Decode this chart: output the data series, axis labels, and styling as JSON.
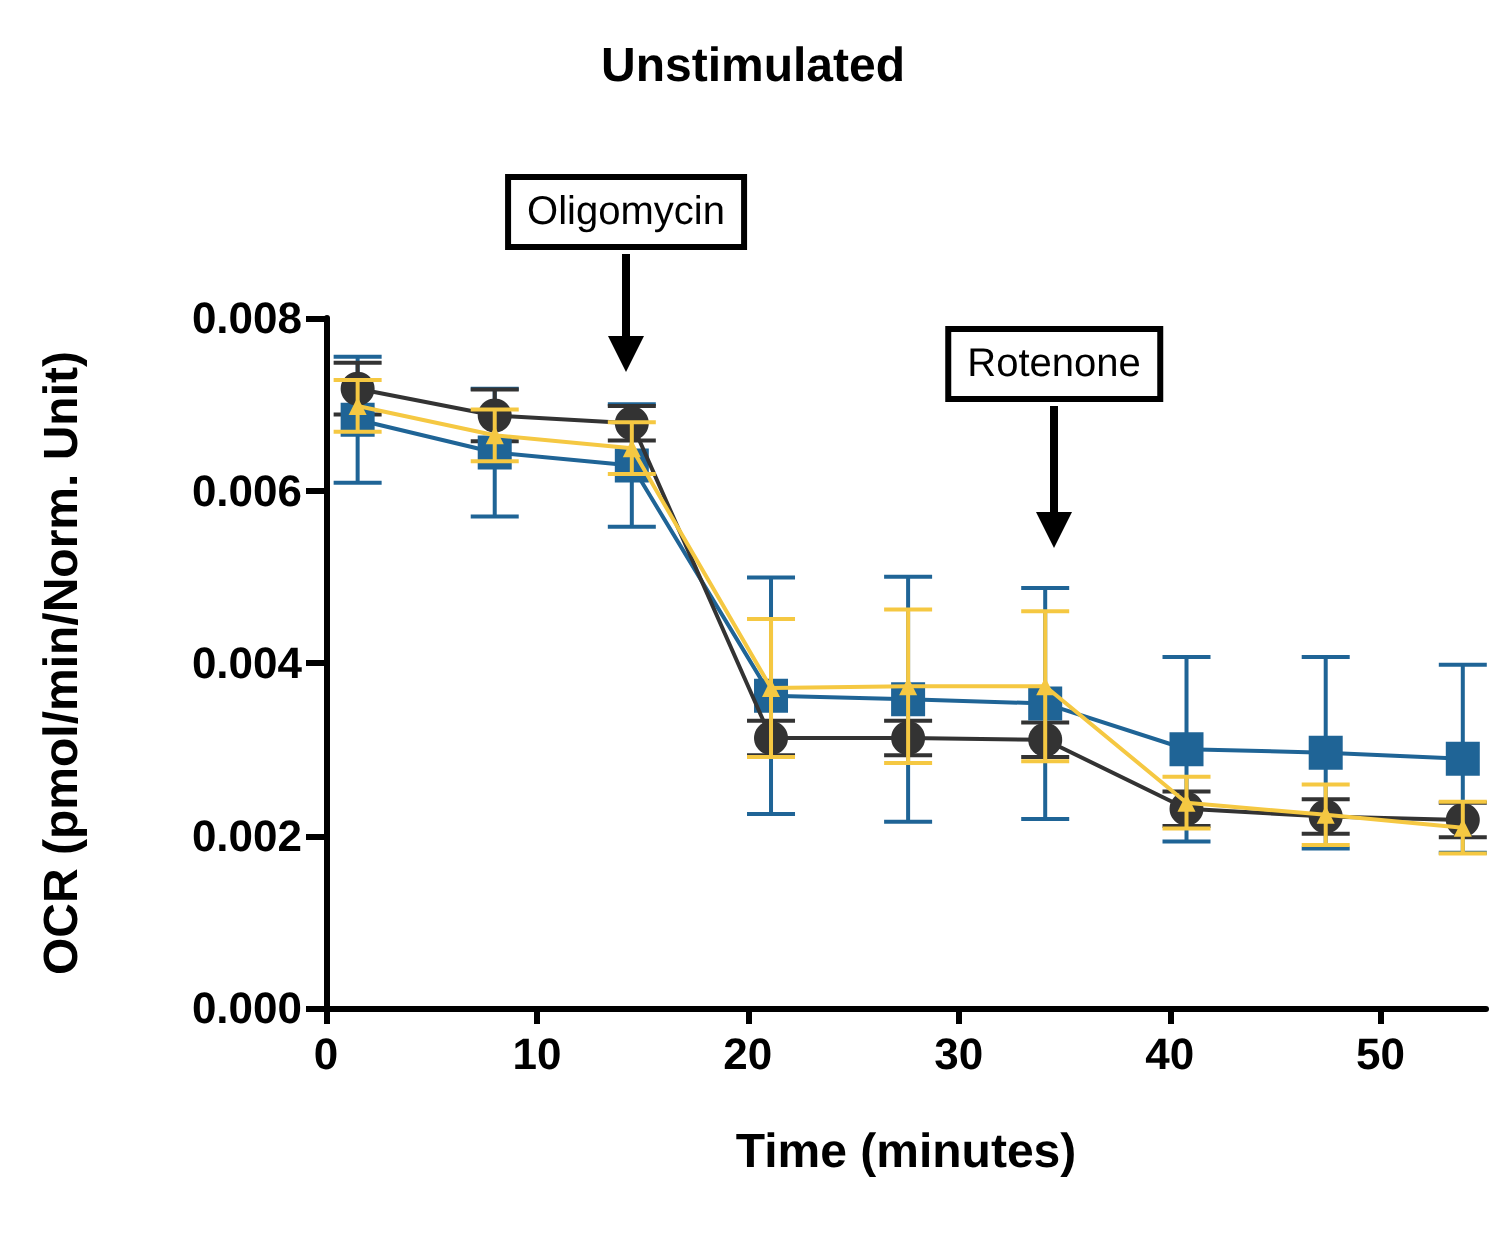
{
  "chart_data": {
    "type": "line",
    "title": "Unstimulated",
    "xlabel": "Time (minutes)",
    "ylabel": "OCR (pmol/min/Norm. Unit)",
    "x": [
      1.5,
      8.0,
      14.5,
      21.1,
      27.6,
      34.1,
      40.8,
      47.4,
      53.9
    ],
    "series": [
      {
        "color": "#f5c842",
        "marker": "triangle",
        "values": [
          0.00698,
          0.00664,
          0.00649,
          0.00371,
          0.00373,
          0.00373,
          0.00238,
          0.00224,
          0.00209
        ],
        "errors": [
          0.0003,
          0.0003,
          0.0003,
          0.0008,
          0.00089,
          0.00087,
          0.0003,
          0.00035,
          0.0003
        ]
      },
      {
        "color": "#1f6496",
        "marker": "square",
        "values": [
          0.00682,
          0.00644,
          0.00629,
          0.00362,
          0.00358,
          0.00353,
          0.003,
          0.00296,
          0.00289
        ],
        "errors": [
          0.00073,
          0.00074,
          0.00071,
          0.00137,
          0.00142,
          0.00134,
          0.00107,
          0.00111,
          0.00109
        ]
      },
      {
        "color": "#333333",
        "marker": "circle",
        "values": [
          0.00718,
          0.00687,
          0.00678,
          0.00313,
          0.00313,
          0.00311,
          0.00231,
          0.00222,
          0.00218
        ],
        "errors": [
          0.0003,
          0.0003,
          0.0002,
          0.0002,
          0.0002,
          0.0002,
          0.0002,
          0.0002,
          0.0002
        ]
      }
    ],
    "xlim": [
      0,
      55
    ],
    "xticks": [
      0,
      10,
      20,
      30,
      40,
      50
    ],
    "ylim": [
      0,
      0.008
    ],
    "yticks": [
      {
        "value": 0,
        "label": "0.000"
      },
      {
        "value": 0.002,
        "label": "0.002"
      },
      {
        "value": 0.004,
        "label": "0.004"
      },
      {
        "value": 0.006,
        "label": "0.006"
      },
      {
        "value": 0.008,
        "label": "0.008"
      }
    ],
    "grid": false,
    "annotations": [
      "Oligomycin",
      "Rotenone"
    ]
  }
}
